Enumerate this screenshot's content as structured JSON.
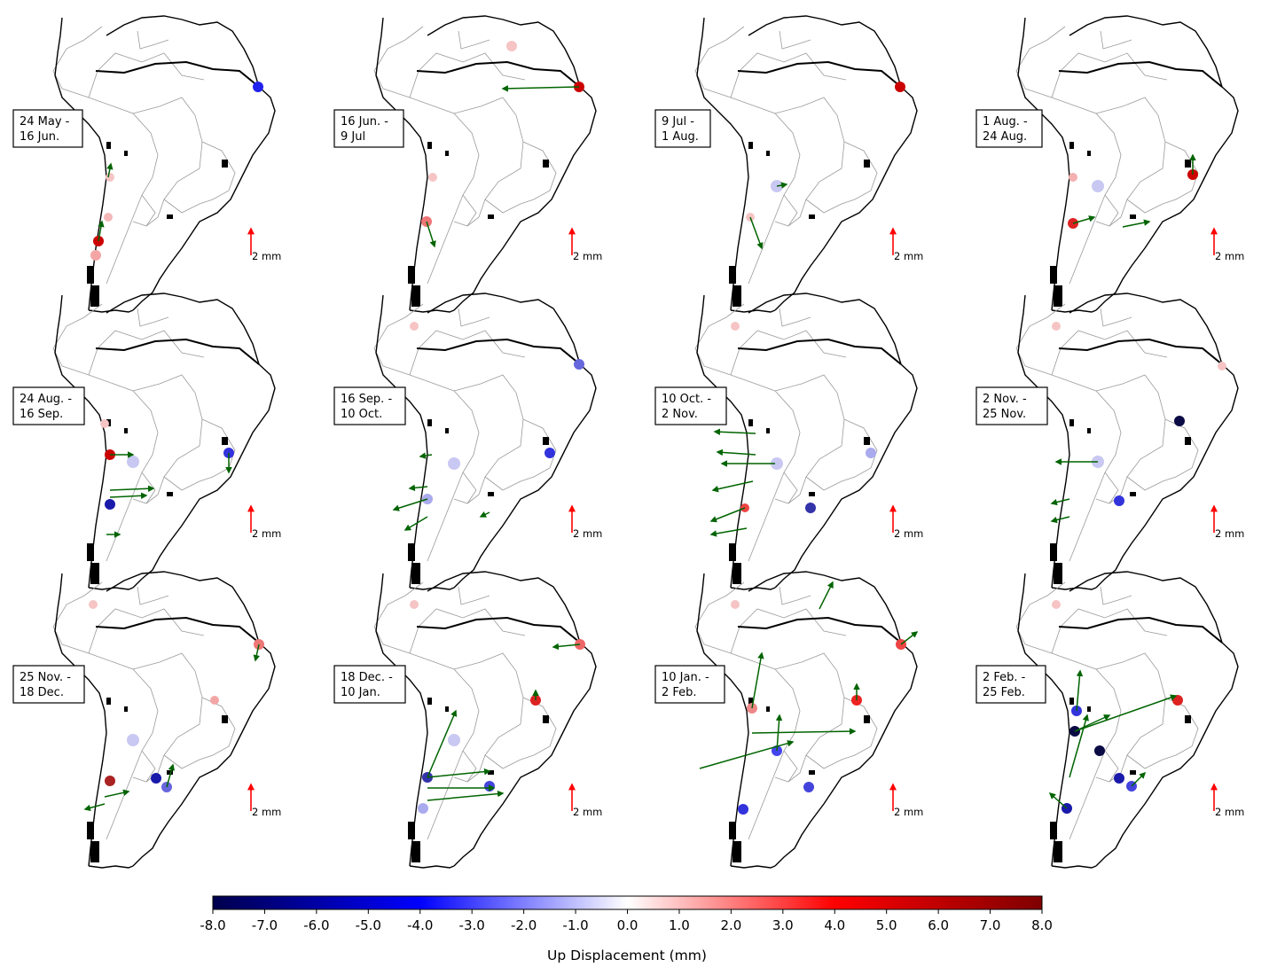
{
  "figure": {
    "panels": [
      {
        "period_line1": "24 May -",
        "period_line2": "16 Jun.",
        "scale_label": "2 mm"
      },
      {
        "period_line1": "16 Jun. -",
        "period_line2": "9 Jul",
        "scale_label": "2 mm"
      },
      {
        "period_line1": "9 Jul -",
        "period_line2": "1 Aug.",
        "scale_label": "2 mm"
      },
      {
        "period_line1": "1 Aug. -",
        "period_line2": "24 Aug.",
        "scale_label": "2 mm"
      },
      {
        "period_line1": "24 Aug. -",
        "period_line2": "16 Sep.",
        "scale_label": "2 mm"
      },
      {
        "period_line1": "16 Sep. -",
        "period_line2": "10 Oct.",
        "scale_label": "2 mm"
      },
      {
        "period_line1": "10 Oct. -",
        "period_line2": "2 Nov.",
        "scale_label": "2 mm"
      },
      {
        "period_line1": "2 Nov. -",
        "period_line2": "25 Nov.",
        "scale_label": "2 mm"
      },
      {
        "period_line1": "25 Nov. -",
        "period_line2": "18 Dec.",
        "scale_label": "2 mm"
      },
      {
        "period_line1": "18 Dec. -",
        "period_line2": "10 Jan.",
        "scale_label": "2 mm"
      },
      {
        "period_line1": "10 Jan. -",
        "period_line2": "2 Feb.",
        "scale_label": "2 mm"
      },
      {
        "period_line1": "2 Feb. -",
        "period_line2": "25 Feb.",
        "scale_label": "2 mm"
      }
    ],
    "colorbar": {
      "title": "Up Displacement (mm)",
      "ticks": [
        "-8.0",
        "-7.0",
        "-6.0",
        "-5.0",
        "-4.0",
        "-3.0",
        "-2.0",
        "-1.0",
        "0.0",
        "1.0",
        "2.0",
        "3.0",
        "4.0",
        "5.0",
        "6.0",
        "7.0",
        "8.0"
      ],
      "range": [
        -8,
        8
      ],
      "colors": {
        "min": "#00004c",
        "neg": "#0000ff",
        "zero": "#ffffff",
        "pos": "#ff0000",
        "max": "#7f0000"
      }
    },
    "colors": {
      "horizontal_arrow": "#006400",
      "scale_arrow": "#ff0000",
      "coastline": "#000000",
      "borders": "#9a9a9a"
    }
  }
}
